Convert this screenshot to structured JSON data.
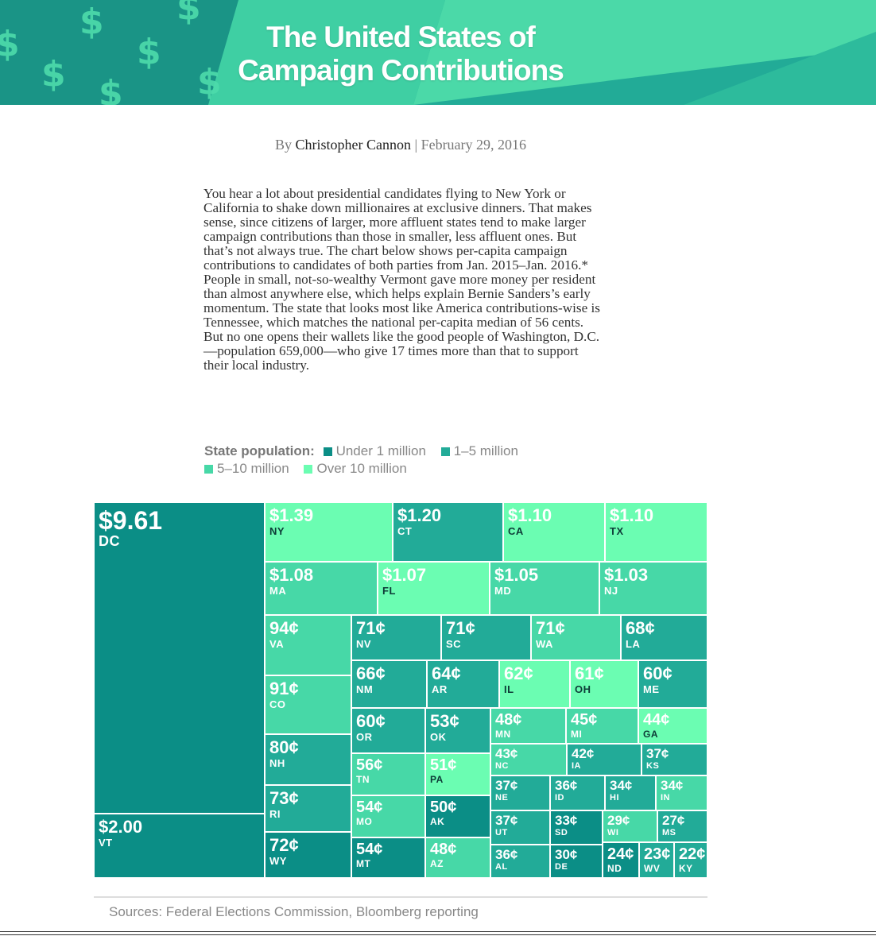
{
  "header": {
    "title_line1": "The United States of",
    "title_line2": "Campaign Contributions"
  },
  "byline": {
    "prefix": "By",
    "author": "Christopher Cannon",
    "separator": "|",
    "date": "February 29, 2016"
  },
  "intro": "You hear a lot about presidential candidates flying to New York or California to shake down millionaires at exclusive dinners. That makes sense, since citizens of larger, more affluent states tend to make larger campaign contributions than those in smaller, less affluent ones. But that’s not always true. The chart below shows per-capita campaign contributions to candidates of both parties from Jan. 2015–Jan. 2016.* People in small, not-so-wealthy Vermont gave more money per resident than almost anywhere else, which helps explain Bernie Sanders’s early momentum. The state that looks most like America contributions-wise is Tennessee, which matches the national per-capita median of 56 cents. But no one opens their wallets like the good people of Washington, D.C.—population 659,000—who give 17 times more than that to support their local industry.",
  "legend": {
    "label": "State population:",
    "items": [
      {
        "label": "Under 1 million",
        "color": "#0b8e86"
      },
      {
        "label": "1–5 million",
        "color": "#22ab98"
      },
      {
        "label": "5–10 million",
        "color": "#47d8a7"
      },
      {
        "label": "Over 10 million",
        "color": "#6bfdb2"
      }
    ]
  },
  "sources": "Sources: Federal Elections Commission, Bloomberg reporting",
  "chart_data": {
    "type": "treemap",
    "title": "",
    "unit": "per-capita campaign contributions (USD)",
    "groups": {
      "under1m": "Under 1 million",
      "1to5m": "1–5 million",
      "5to10m": "5–10 million",
      "over10m": "Over 10 million"
    },
    "colors": {
      "under1m": "#0b8e86",
      "1to5m": "#22ab98",
      "5to10m": "#47d8a7",
      "over10m": "#6bfdb2"
    },
    "nodes": [
      {
        "state": "DC",
        "label": "$9.61",
        "value": 9.61,
        "group": "under1m"
      },
      {
        "state": "VT",
        "label": "$2.00",
        "value": 2.0,
        "group": "under1m"
      },
      {
        "state": "NY",
        "label": "$1.39",
        "value": 1.39,
        "group": "over10m"
      },
      {
        "state": "CT",
        "label": "$1.20",
        "value": 1.2,
        "group": "1to5m"
      },
      {
        "state": "CA",
        "label": "$1.10",
        "value": 1.1,
        "group": "over10m"
      },
      {
        "state": "TX",
        "label": "$1.10",
        "value": 1.1,
        "group": "over10m"
      },
      {
        "state": "MA",
        "label": "$1.08",
        "value": 1.08,
        "group": "5to10m"
      },
      {
        "state": "FL",
        "label": "$1.07",
        "value": 1.07,
        "group": "over10m"
      },
      {
        "state": "MD",
        "label": "$1.05",
        "value": 1.05,
        "group": "5to10m"
      },
      {
        "state": "NJ",
        "label": "$1.03",
        "value": 1.03,
        "group": "5to10m"
      },
      {
        "state": "VA",
        "label": "94¢",
        "value": 0.94,
        "group": "5to10m"
      },
      {
        "state": "CO",
        "label": "91¢",
        "value": 0.91,
        "group": "5to10m"
      },
      {
        "state": "NH",
        "label": "80¢",
        "value": 0.8,
        "group": "1to5m"
      },
      {
        "state": "RI",
        "label": "73¢",
        "value": 0.73,
        "group": "1to5m"
      },
      {
        "state": "WY",
        "label": "72¢",
        "value": 0.72,
        "group": "under1m"
      },
      {
        "state": "NV",
        "label": "71¢",
        "value": 0.71,
        "group": "1to5m"
      },
      {
        "state": "SC",
        "label": "71¢",
        "value": 0.71,
        "group": "1to5m"
      },
      {
        "state": "WA",
        "label": "71¢",
        "value": 0.71,
        "group": "5to10m"
      },
      {
        "state": "LA",
        "label": "68¢",
        "value": 0.68,
        "group": "1to5m"
      },
      {
        "state": "NM",
        "label": "66¢",
        "value": 0.66,
        "group": "1to5m"
      },
      {
        "state": "AR",
        "label": "64¢",
        "value": 0.64,
        "group": "1to5m"
      },
      {
        "state": "IL",
        "label": "62¢",
        "value": 0.62,
        "group": "over10m"
      },
      {
        "state": "OH",
        "label": "61¢",
        "value": 0.61,
        "group": "over10m"
      },
      {
        "state": "ME",
        "label": "60¢",
        "value": 0.6,
        "group": "1to5m"
      },
      {
        "state": "OR",
        "label": "60¢",
        "value": 0.6,
        "group": "1to5m"
      },
      {
        "state": "OK",
        "label": "53¢",
        "value": 0.53,
        "group": "1to5m"
      },
      {
        "state": "TN",
        "label": "56¢",
        "value": 0.56,
        "group": "5to10m"
      },
      {
        "state": "PA",
        "label": "51¢",
        "value": 0.51,
        "group": "over10m"
      },
      {
        "state": "MO",
        "label": "54¢",
        "value": 0.54,
        "group": "5to10m"
      },
      {
        "state": "AK",
        "label": "50¢",
        "value": 0.5,
        "group": "under1m"
      },
      {
        "state": "MT",
        "label": "54¢",
        "value": 0.54,
        "group": "under1m"
      },
      {
        "state": "AZ",
        "label": "48¢",
        "value": 0.48,
        "group": "5to10m"
      },
      {
        "state": "MN",
        "label": "48¢",
        "value": 0.48,
        "group": "5to10m"
      },
      {
        "state": "MI",
        "label": "45¢",
        "value": 0.45,
        "group": "5to10m"
      },
      {
        "state": "GA",
        "label": "44¢",
        "value": 0.44,
        "group": "over10m"
      },
      {
        "state": "NC",
        "label": "43¢",
        "value": 0.43,
        "group": "5to10m"
      },
      {
        "state": "IA",
        "label": "42¢",
        "value": 0.42,
        "group": "1to5m"
      },
      {
        "state": "KS",
        "label": "37¢",
        "value": 0.37,
        "group": "1to5m"
      },
      {
        "state": "NE",
        "label": "37¢",
        "value": 0.37,
        "group": "1to5m"
      },
      {
        "state": "ID",
        "label": "36¢",
        "value": 0.36,
        "group": "1to5m"
      },
      {
        "state": "HI",
        "label": "34¢",
        "value": 0.34,
        "group": "1to5m"
      },
      {
        "state": "IN",
        "label": "34¢",
        "value": 0.34,
        "group": "5to10m"
      },
      {
        "state": "UT",
        "label": "37¢",
        "value": 0.37,
        "group": "1to5m"
      },
      {
        "state": "SD",
        "label": "33¢",
        "value": 0.33,
        "group": "under1m"
      },
      {
        "state": "WI",
        "label": "29¢",
        "value": 0.29,
        "group": "5to10m"
      },
      {
        "state": "MS",
        "label": "27¢",
        "value": 0.27,
        "group": "1to5m"
      },
      {
        "state": "AL",
        "label": "36¢",
        "value": 0.36,
        "group": "1to5m"
      },
      {
        "state": "DE",
        "label": "30¢",
        "value": 0.3,
        "group": "under1m"
      },
      {
        "state": "ND",
        "label": "24¢",
        "value": 0.24,
        "group": "under1m"
      },
      {
        "state": "WV",
        "label": "23¢",
        "value": 0.23,
        "group": "1to5m"
      },
      {
        "state": "KY",
        "label": "22¢",
        "value": 0.22,
        "group": "1to5m"
      }
    ]
  }
}
